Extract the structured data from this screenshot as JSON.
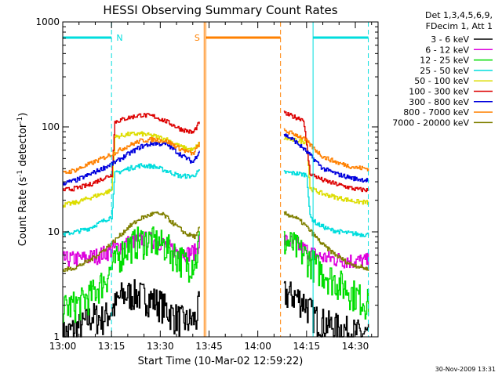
{
  "chart_data": {
    "type": "line",
    "title": "HESSI Observing Summary Count Rates",
    "xlabel": "Start Time (10-Mar-02 12:59:22)",
    "ylabel_main": "Count Rate (s",
    "ylabel_sup1": "-1",
    "ylabel_mid": " detector",
    "ylabel_sup2": "-1",
    "ylabel_end": ")",
    "x_unit": "minutes from 13:00",
    "xlim": [
      0,
      97
    ],
    "ylim": [
      1,
      1000
    ],
    "yscale": "log",
    "x_ticks": [
      {
        "value": 0,
        "label": "13:00"
      },
      {
        "value": 15,
        "label": "13:15"
      },
      {
        "value": 30,
        "label": "13:30"
      },
      {
        "value": 45,
        "label": "13:45"
      },
      {
        "value": 60,
        "label": "14:00"
      },
      {
        "value": 75,
        "label": "14:15"
      },
      {
        "value": 90,
        "label": "14:30"
      }
    ],
    "y_ticks": [
      {
        "value": 1,
        "label": "1"
      },
      {
        "value": 10,
        "label": "10"
      },
      {
        "value": 100,
        "label": "100"
      },
      {
        "value": 1000,
        "label": "1000"
      }
    ],
    "legend": {
      "position": "right",
      "header": [
        "Det 1,3,4,5,6,9,",
        "FDecim 1, Att 1"
      ]
    },
    "series": [
      {
        "name": "3 - 6 keV",
        "color": "#000000",
        "segments": [
          [
            [
              0,
              1.05
            ],
            [
              6,
              1.3
            ],
            [
              9,
              1.6
            ],
            [
              12,
              1.5
            ],
            [
              15,
              1.8
            ],
            [
              18,
              2.5
            ],
            [
              22,
              2.6
            ],
            [
              26,
              2.4
            ],
            [
              30,
              2.1
            ],
            [
              34,
              1.6
            ],
            [
              38,
              1.4
            ],
            [
              41,
              1.5
            ],
            [
              42,
              2.2
            ]
          ],
          [
            [
              68,
              2.6
            ],
            [
              71,
              2.5
            ],
            [
              74,
              2.2
            ],
            [
              76,
              1.8
            ],
            [
              78,
              1.5
            ],
            [
              82,
              1.3
            ],
            [
              86,
              1.2
            ],
            [
              90,
              1.1
            ],
            [
              94,
              1.05
            ]
          ]
        ]
      },
      {
        "name": "6 - 12 keV",
        "color": "#dd00dd",
        "segments": [
          [
            [
              0,
              5.5
            ],
            [
              6,
              5.6
            ],
            [
              10,
              5.9
            ],
            [
              14,
              6.5
            ],
            [
              18,
              7.5
            ],
            [
              22,
              8.3
            ],
            [
              26,
              8.6
            ],
            [
              30,
              8.0
            ],
            [
              34,
              6.8
            ],
            [
              38,
              6.2
            ],
            [
              41,
              6.6
            ],
            [
              42,
              8.5
            ]
          ],
          [
            [
              68,
              8.3
            ],
            [
              70,
              8.0
            ],
            [
              73,
              7.2
            ],
            [
              76,
              6.4
            ],
            [
              79,
              5.8
            ],
            [
              84,
              5.5
            ],
            [
              90,
              5.3
            ],
            [
              94,
              5.3
            ]
          ]
        ]
      },
      {
        "name": "12 - 25 keV",
        "color": "#00dd00",
        "segments": [
          [
            [
              0,
              1.9
            ],
            [
              5,
              2.1
            ],
            [
              9,
              2.6
            ],
            [
              13,
              3.6
            ],
            [
              16,
              5.2
            ],
            [
              19,
              7.0
            ],
            [
              23,
              8.3
            ],
            [
              27,
              8.4
            ],
            [
              31,
              7.6
            ],
            [
              35,
              6.0
            ],
            [
              38,
              5.0
            ],
            [
              41,
              5.5
            ],
            [
              42,
              9.0
            ]
          ],
          [
            [
              68,
              8.0
            ],
            [
              70,
              7.8
            ],
            [
              73,
              6.6
            ],
            [
              76,
              5.4
            ],
            [
              79,
              4.4
            ],
            [
              83,
              3.6
            ],
            [
              88,
              2.8
            ],
            [
              92,
              2.3
            ],
            [
              94,
              2.1
            ]
          ]
        ]
      },
      {
        "name": "25 - 50 keV",
        "color": "#00dddd",
        "segments": [
          [
            [
              0,
              9.5
            ],
            [
              4,
              10
            ],
            [
              8,
              10.8
            ],
            [
              12,
              12.5
            ],
            [
              15,
              14
            ],
            [
              16,
              36
            ],
            [
              20,
              40
            ],
            [
              24,
              43
            ],
            [
              28,
              42
            ],
            [
              32,
              38
            ],
            [
              36,
              34
            ],
            [
              40,
              34
            ],
            [
              42,
              38
            ]
          ],
          [
            [
              68,
              37
            ],
            [
              72,
              36
            ],
            [
              75,
              35
            ],
            [
              76,
              14
            ],
            [
              78,
              12
            ],
            [
              82,
              10.5
            ],
            [
              87,
              9.8
            ],
            [
              91,
              9.5
            ],
            [
              94,
              9.4
            ]
          ]
        ]
      },
      {
        "name": "50 - 100 keV",
        "color": "#dddd00",
        "segments": [
          [
            [
              0,
              18
            ],
            [
              4,
              19
            ],
            [
              8,
              21
            ],
            [
              12,
              23
            ],
            [
              15,
              25
            ],
            [
              16,
              80
            ],
            [
              20,
              85
            ],
            [
              24,
              86
            ],
            [
              28,
              82
            ],
            [
              32,
              76
            ],
            [
              36,
              65
            ],
            [
              40,
              60
            ],
            [
              42,
              70
            ]
          ],
          [
            [
              68,
              78
            ],
            [
              72,
              74
            ],
            [
              75,
              72
            ],
            [
              76,
              26
            ],
            [
              80,
              23
            ],
            [
              85,
              21
            ],
            [
              90,
              19.5
            ],
            [
              94,
              19
            ]
          ]
        ]
      },
      {
        "name": "100 - 300 keV",
        "color": "#dd0000",
        "segments": [
          [
            [
              0,
              25
            ],
            [
              4,
              26
            ],
            [
              8,
              28
            ],
            [
              12,
              32
            ],
            [
              15,
              35
            ],
            [
              16,
              112
            ],
            [
              20,
              122
            ],
            [
              24,
              130
            ],
            [
              28,
              126
            ],
            [
              32,
              112
            ],
            [
              36,
              96
            ],
            [
              40,
              88
            ],
            [
              42,
              110
            ]
          ],
          [
            [
              68,
              135
            ],
            [
              71,
              125
            ],
            [
              74,
              118
            ],
            [
              76,
              36
            ],
            [
              80,
              31
            ],
            [
              85,
              28
            ],
            [
              90,
              25.5
            ],
            [
              94,
              25
            ]
          ]
        ]
      },
      {
        "name": "300 - 800 keV",
        "color": "#0000dd",
        "segments": [
          [
            [
              0,
              29
            ],
            [
              4,
              31
            ],
            [
              8,
              35
            ],
            [
              12,
              40
            ],
            [
              16,
              46
            ],
            [
              20,
              55
            ],
            [
              24,
              65
            ],
            [
              28,
              70
            ],
            [
              32,
              68
            ],
            [
              36,
              55
            ],
            [
              40,
              46
            ],
            [
              42,
              60
            ]
          ],
          [
            [
              68,
              85
            ],
            [
              71,
              75
            ],
            [
              74,
              62
            ],
            [
              77,
              50
            ],
            [
              80,
              40
            ],
            [
              85,
              35
            ],
            [
              90,
              32
            ],
            [
              94,
              31
            ]
          ]
        ]
      },
      {
        "name": "800 - 7000 keV",
        "color": "#ff8000",
        "segments": [
          [
            [
              0,
              36
            ],
            [
              4,
              39
            ],
            [
              8,
              44
            ],
            [
              12,
              50
            ],
            [
              16,
              57
            ],
            [
              20,
              66
            ],
            [
              24,
              74
            ],
            [
              28,
              76
            ],
            [
              32,
              73
            ],
            [
              36,
              62
            ],
            [
              40,
              55
            ],
            [
              42,
              70
            ]
          ],
          [
            [
              68,
              92
            ],
            [
              71,
              86
            ],
            [
              74,
              78
            ],
            [
              77,
              63
            ],
            [
              80,
              52
            ],
            [
              85,
              45
            ],
            [
              90,
              41
            ],
            [
              94,
              40
            ]
          ]
        ]
      },
      {
        "name": "7000 - 20000 keV",
        "color": "#808000",
        "segments": [
          [
            [
              0,
              4.3
            ],
            [
              4,
              4.6
            ],
            [
              8,
              5.3
            ],
            [
              12,
              6.5
            ],
            [
              16,
              8.3
            ],
            [
              20,
              11
            ],
            [
              24,
              13.5
            ],
            [
              28,
              15
            ],
            [
              31,
              14.5
            ],
            [
              34,
              12
            ],
            [
              38,
              9.5
            ],
            [
              41,
              9
            ],
            [
              42,
              11
            ]
          ],
          [
            [
              68,
              15
            ],
            [
              71,
              14
            ],
            [
              74,
              12
            ],
            [
              77,
              9.5
            ],
            [
              80,
              7.5
            ],
            [
              84,
              6
            ],
            [
              88,
              5
            ],
            [
              94,
              4.4
            ]
          ]
        ]
      }
    ],
    "flags": [
      {
        "label": "N",
        "color": "#00dddd",
        "level_x": [
          [
            0,
            15
          ],
          [
            77,
            94
          ]
        ],
        "dashed_x": [
          15,
          94
        ],
        "solid_x": [
          77
        ],
        "label_x": 16.5
      },
      {
        "label": "S",
        "color": "#ff8000",
        "level_x": [
          [
            44,
            67
          ]
        ],
        "dashed_x": [
          67
        ],
        "solid_x": [
          43.5,
          44
        ],
        "label_x": 40.5
      }
    ],
    "gap": [
      43,
      68
    ],
    "plot_time": "30-Nov-2009 13:31"
  }
}
